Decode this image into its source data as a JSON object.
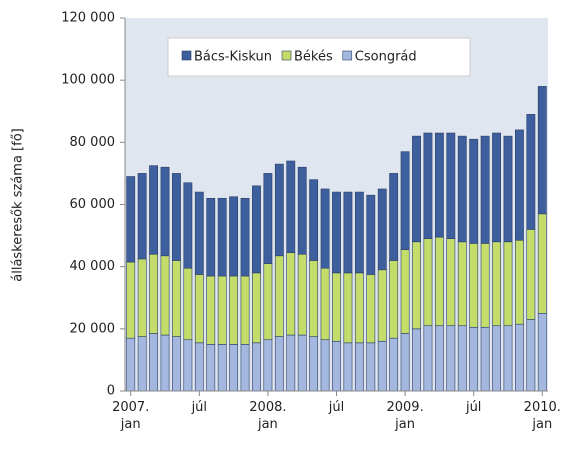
{
  "chart_data": {
    "type": "stacked_bar",
    "ylabel": "álláskeresők száma [fő]",
    "categories": [
      "2007. jan",
      null,
      null,
      null,
      null,
      null,
      "júl",
      null,
      null,
      null,
      null,
      null,
      "2008. jan",
      null,
      null,
      null,
      null,
      null,
      "júl",
      null,
      null,
      null,
      null,
      null,
      "2009. jan",
      null,
      null,
      null,
      null,
      null,
      "júl",
      null,
      null,
      null,
      null,
      null,
      "2010. jan"
    ],
    "series": [
      {
        "name": "Bács-Kiskun",
        "color": "#3e5f9e",
        "values": [
          27500,
          27500,
          28500,
          28500,
          28000,
          27500,
          26500,
          25000,
          25000,
          25500,
          25000,
          28000,
          29000,
          29500,
          29500,
          28000,
          26000,
          25500,
          26000,
          26000,
          26000,
          25500,
          26000,
          28000,
          31500,
          34000,
          34000,
          33500,
          34000,
          34000,
          33500,
          34500,
          35000,
          34000,
          35500,
          37000,
          41000
        ]
      },
      {
        "name": "Békés",
        "color": "#c3dc6a",
        "values": [
          24500,
          25000,
          25500,
          25500,
          24500,
          23000,
          22000,
          22000,
          22000,
          22000,
          22000,
          22500,
          24500,
          26000,
          26500,
          26000,
          24500,
          23000,
          22000,
          22500,
          22500,
          22000,
          23000,
          25000,
          27000,
          28000,
          28000,
          28500,
          28000,
          27000,
          27000,
          27000,
          27000,
          27000,
          27000,
          29000,
          32000
        ]
      },
      {
        "name": "Csongrád",
        "color": "#a3b7df",
        "values": [
          17000,
          17500,
          18500,
          18000,
          17500,
          16500,
          15500,
          15000,
          15000,
          15000,
          15000,
          15500,
          16500,
          17500,
          18000,
          18000,
          17500,
          16500,
          16000,
          15500,
          15500,
          15500,
          16000,
          17000,
          18500,
          20000,
          21000,
          21000,
          21000,
          21000,
          20500,
          20500,
          21000,
          21000,
          21500,
          23000,
          25000
        ]
      }
    ],
    "ylim": [
      0,
      120000
    ],
    "yticks": [
      0,
      {
        "value": 20000,
        "label": "20 000"
      },
      {
        "value": 40000,
        "label": "40 000"
      },
      {
        "value": 60000,
        "label": "60 000"
      },
      {
        "value": 80000,
        "label": "80 000"
      },
      {
        "value": 100000,
        "label": "100 000"
      },
      {
        "value": 120000,
        "label": "120 000"
      }
    ],
    "legend": "top"
  }
}
